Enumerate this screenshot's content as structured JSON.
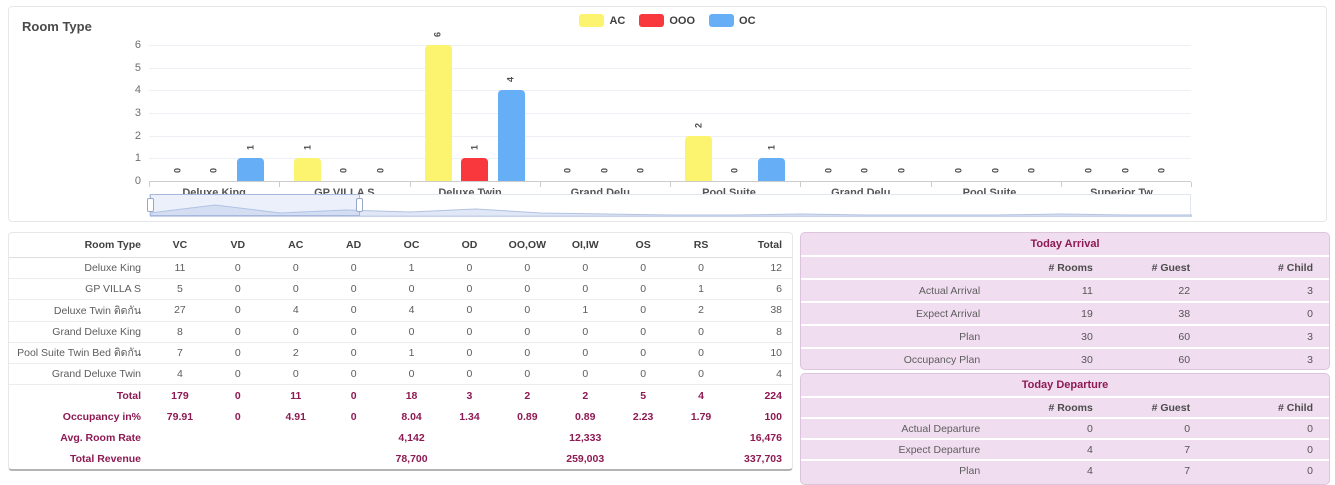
{
  "colors": {
    "accent_maroon": "#8e1a53",
    "panel_background": "#f0ddf0",
    "series_ac_yellow": "#fcf46f",
    "series_ooo_red": "#f8383c",
    "series_oc_blue": "#66aff7"
  },
  "chart_data": {
    "type": "bar",
    "title": "Room Type",
    "categories": [
      "Deluxe King",
      "GP VILLA S",
      "Deluxe Twin...",
      "Grand Delu...",
      "Pool Suite ...",
      "Grand Delu...",
      "Pool Suite ...",
      "Superior Tw..."
    ],
    "series": [
      {
        "name": "AC",
        "color": "#fcf46f",
        "values": [
          0,
          1,
          6,
          0,
          2,
          0,
          0,
          0
        ]
      },
      {
        "name": "OOO",
        "color": "#f8383c",
        "values": [
          0,
          0,
          1,
          0,
          0,
          0,
          0,
          0
        ]
      },
      {
        "name": "OC",
        "color": "#66aff7",
        "values": [
          1,
          0,
          4,
          0,
          1,
          0,
          0,
          0
        ]
      }
    ],
    "xlabel": "",
    "ylabel": "",
    "ylim": [
      0,
      6
    ],
    "yticks": [
      0,
      1,
      2,
      3,
      4,
      5,
      6
    ],
    "grid": true,
    "legend_position": "top",
    "value_labels": "rotated-90",
    "datazoom": {
      "window_start_pct": 0,
      "window_end_pct": 20.2,
      "shadow_profile": [
        4,
        12,
        4,
        7,
        5,
        8,
        4,
        3,
        2,
        2,
        3,
        2,
        2,
        2,
        3,
        2,
        2
      ]
    }
  },
  "room_table": {
    "headers": [
      "Room Type",
      "VC",
      "VD",
      "AC",
      "AD",
      "OC",
      "OD",
      "OO,OW",
      "OI,IW",
      "OS",
      "RS",
      "Total"
    ],
    "rows": [
      [
        "Deluxe King",
        "11",
        "0",
        "0",
        "0",
        "1",
        "0",
        "0",
        "0",
        "0",
        "0",
        "12"
      ],
      [
        "GP VILLA S",
        "5",
        "0",
        "0",
        "0",
        "0",
        "0",
        "0",
        "0",
        "0",
        "1",
        "6"
      ],
      [
        "Deluxe Twin ติดกัน",
        "27",
        "0",
        "4",
        "0",
        "4",
        "0",
        "0",
        "1",
        "0",
        "2",
        "38"
      ],
      [
        "Grand Deluxe King",
        "8",
        "0",
        "0",
        "0",
        "0",
        "0",
        "0",
        "0",
        "0",
        "0",
        "8"
      ],
      [
        "Pool Suite Twin Bed ติดกัน",
        "7",
        "0",
        "2",
        "0",
        "1",
        "0",
        "0",
        "0",
        "0",
        "0",
        "10"
      ],
      [
        "Grand Deluxe Twin",
        "4",
        "0",
        "0",
        "0",
        "0",
        "0",
        "0",
        "0",
        "0",
        "0",
        "4"
      ]
    ],
    "footer_rows": [
      [
        "Total",
        "179",
        "0",
        "11",
        "0",
        "18",
        "3",
        "2",
        "2",
        "5",
        "4",
        "224"
      ],
      [
        "Occupancy in%",
        "79.91",
        "0",
        "4.91",
        "0",
        "8.04",
        "1.34",
        "0.89",
        "0.89",
        "2.23",
        "1.79",
        "100"
      ],
      [
        "Avg. Room Rate",
        "",
        "",
        "",
        "",
        "4,142",
        "",
        "",
        "12,333",
        "",
        "",
        "16,476"
      ],
      [
        "Total Revenue",
        "",
        "",
        "",
        "",
        "78,700",
        "",
        "",
        "259,003",
        "",
        "",
        "337,703"
      ]
    ]
  },
  "arrival_panel": {
    "title": "Today Arrival",
    "headers": [
      "# Rooms",
      "# Guest",
      "# Child"
    ],
    "rows": [
      [
        "Actual Arrival",
        "11",
        "22",
        "3"
      ],
      [
        "Expect Arrival",
        "19",
        "38",
        "0"
      ],
      [
        "Plan",
        "30",
        "60",
        "3"
      ],
      [
        "Occupancy Plan",
        "30",
        "60",
        "3"
      ]
    ]
  },
  "departure_panel": {
    "title": "Today Departure",
    "headers": [
      "# Rooms",
      "# Guest",
      "# Child"
    ],
    "rows": [
      [
        "Actual Departure",
        "0",
        "0",
        "0"
      ],
      [
        "Expect Departure",
        "4",
        "7",
        "0"
      ],
      [
        "Plan",
        "4",
        "7",
        "0"
      ]
    ]
  }
}
